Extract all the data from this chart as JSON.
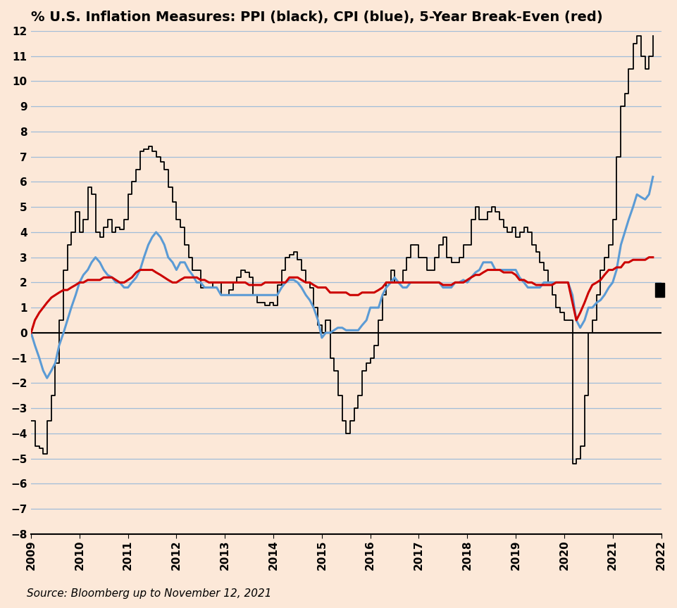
{
  "title": "% U.S. Inflation Measures: PPI (black), CPI (blue), 5-Year Break-Even (red)",
  "background_color": "#fce8d8",
  "source_text": "Source: Bloomberg up to November 12, 2021",
  "ylim": [
    -8,
    12
  ],
  "yticks": [
    -8,
    -7,
    -6,
    -5,
    -4,
    -3,
    -2,
    -1,
    0,
    1,
    2,
    3,
    4,
    5,
    6,
    7,
    8,
    9,
    10,
    11,
    12
  ],
  "grid_color": "#a0bcd8",
  "ppi_color": "#000000",
  "cpi_color": "#5b9bd5",
  "breakeven_color": "#cc0000",
  "ppi_linewidth": 1.3,
  "cpi_linewidth": 2.2,
  "breakeven_linewidth": 2.2,
  "title_fontsize": 14,
  "tick_fontsize": 11,
  "source_fontsize": 11,
  "xlim": [
    2009.0,
    2022.0
  ],
  "xticks": [
    2009,
    2010,
    2011,
    2012,
    2013,
    2014,
    2015,
    2016,
    2017,
    2018,
    2019,
    2020,
    2021,
    2022
  ],
  "ppi_dates": [
    2009.0,
    2009.08,
    2009.17,
    2009.25,
    2009.33,
    2009.42,
    2009.5,
    2009.58,
    2009.67,
    2009.75,
    2009.83,
    2009.92,
    2010.0,
    2010.08,
    2010.17,
    2010.25,
    2010.33,
    2010.42,
    2010.5,
    2010.58,
    2010.67,
    2010.75,
    2010.83,
    2010.92,
    2011.0,
    2011.08,
    2011.17,
    2011.25,
    2011.33,
    2011.42,
    2011.5,
    2011.58,
    2011.67,
    2011.75,
    2011.83,
    2011.92,
    2012.0,
    2012.08,
    2012.17,
    2012.25,
    2012.33,
    2012.42,
    2012.5,
    2012.58,
    2012.67,
    2012.75,
    2012.83,
    2012.92,
    2013.0,
    2013.08,
    2013.17,
    2013.25,
    2013.33,
    2013.42,
    2013.5,
    2013.58,
    2013.67,
    2013.75,
    2013.83,
    2013.92,
    2014.0,
    2014.08,
    2014.17,
    2014.25,
    2014.33,
    2014.42,
    2014.5,
    2014.58,
    2014.67,
    2014.75,
    2014.83,
    2014.92,
    2015.0,
    2015.08,
    2015.17,
    2015.25,
    2015.33,
    2015.42,
    2015.5,
    2015.58,
    2015.67,
    2015.75,
    2015.83,
    2015.92,
    2016.0,
    2016.08,
    2016.17,
    2016.25,
    2016.33,
    2016.42,
    2016.5,
    2016.58,
    2016.67,
    2016.75,
    2016.83,
    2016.92,
    2017.0,
    2017.08,
    2017.17,
    2017.25,
    2017.33,
    2017.42,
    2017.5,
    2017.58,
    2017.67,
    2017.75,
    2017.83,
    2017.92,
    2018.0,
    2018.08,
    2018.17,
    2018.25,
    2018.33,
    2018.42,
    2018.5,
    2018.58,
    2018.67,
    2018.75,
    2018.83,
    2018.92,
    2019.0,
    2019.08,
    2019.17,
    2019.25,
    2019.33,
    2019.42,
    2019.5,
    2019.58,
    2019.67,
    2019.75,
    2019.83,
    2019.92,
    2020.0,
    2020.08,
    2020.17,
    2020.25,
    2020.33,
    2020.42,
    2020.5,
    2020.58,
    2020.67,
    2020.75,
    2020.83,
    2020.92,
    2021.0,
    2021.08,
    2021.17,
    2021.25,
    2021.33,
    2021.42,
    2021.5,
    2021.58,
    2021.67,
    2021.75,
    2021.83
  ],
  "ppi_values": [
    -3.5,
    -4.5,
    -4.6,
    -4.8,
    -3.5,
    -2.5,
    -1.2,
    0.5,
    2.5,
    3.5,
    4.0,
    4.8,
    4.0,
    4.5,
    5.8,
    5.5,
    4.0,
    3.8,
    4.2,
    4.5,
    4.0,
    4.2,
    4.1,
    4.5,
    5.5,
    6.0,
    6.5,
    7.2,
    7.3,
    7.4,
    7.2,
    7.0,
    6.8,
    6.5,
    5.8,
    5.2,
    4.5,
    4.2,
    3.5,
    3.0,
    2.5,
    2.5,
    1.8,
    1.8,
    1.8,
    2.0,
    2.0,
    1.5,
    1.5,
    1.7,
    2.0,
    2.2,
    2.5,
    2.4,
    2.2,
    1.5,
    1.2,
    1.2,
    1.1,
    1.2,
    1.1,
    1.9,
    2.5,
    3.0,
    3.1,
    3.2,
    2.9,
    2.5,
    2.0,
    1.8,
    1.0,
    0.3,
    0.0,
    0.5,
    -1.0,
    -1.5,
    -2.5,
    -3.5,
    -4.0,
    -3.5,
    -3.0,
    -2.5,
    -1.5,
    -1.2,
    -1.0,
    -0.5,
    0.5,
    1.5,
    2.0,
    2.5,
    2.0,
    2.0,
    2.5,
    3.0,
    3.5,
    3.5,
    3.0,
    3.0,
    2.5,
    2.5,
    3.0,
    3.5,
    3.8,
    3.0,
    2.8,
    2.8,
    3.0,
    3.5,
    3.5,
    4.5,
    5.0,
    4.5,
    4.5,
    4.8,
    5.0,
    4.8,
    4.5,
    4.2,
    4.0,
    4.2,
    3.8,
    4.0,
    4.2,
    4.0,
    3.5,
    3.2,
    2.8,
    2.5,
    2.0,
    1.5,
    1.0,
    0.8,
    0.5,
    0.5,
    -5.2,
    -5.0,
    -4.5,
    -2.5,
    0.0,
    0.5,
    1.5,
    2.5,
    3.0,
    3.5,
    4.5,
    7.0,
    9.0,
    9.5,
    10.5,
    11.5,
    11.8,
    11.0,
    10.5,
    11.0,
    11.8
  ],
  "cpi_dates": [
    2009.0,
    2009.08,
    2009.17,
    2009.25,
    2009.33,
    2009.42,
    2009.5,
    2009.58,
    2009.67,
    2009.75,
    2009.83,
    2009.92,
    2010.0,
    2010.08,
    2010.17,
    2010.25,
    2010.33,
    2010.42,
    2010.5,
    2010.58,
    2010.67,
    2010.75,
    2010.83,
    2010.92,
    2011.0,
    2011.08,
    2011.17,
    2011.25,
    2011.33,
    2011.42,
    2011.5,
    2011.58,
    2011.67,
    2011.75,
    2011.83,
    2011.92,
    2012.0,
    2012.08,
    2012.17,
    2012.25,
    2012.33,
    2012.42,
    2012.5,
    2012.58,
    2012.67,
    2012.75,
    2012.83,
    2012.92,
    2013.0,
    2013.08,
    2013.17,
    2013.25,
    2013.33,
    2013.42,
    2013.5,
    2013.58,
    2013.67,
    2013.75,
    2013.83,
    2013.92,
    2014.0,
    2014.08,
    2014.17,
    2014.25,
    2014.33,
    2014.42,
    2014.5,
    2014.58,
    2014.67,
    2014.75,
    2014.83,
    2014.92,
    2015.0,
    2015.08,
    2015.17,
    2015.25,
    2015.33,
    2015.42,
    2015.5,
    2015.58,
    2015.67,
    2015.75,
    2015.83,
    2015.92,
    2016.0,
    2016.08,
    2016.17,
    2016.25,
    2016.33,
    2016.42,
    2016.5,
    2016.58,
    2016.67,
    2016.75,
    2016.83,
    2016.92,
    2017.0,
    2017.08,
    2017.17,
    2017.25,
    2017.33,
    2017.42,
    2017.5,
    2017.58,
    2017.67,
    2017.75,
    2017.83,
    2017.92,
    2018.0,
    2018.08,
    2018.17,
    2018.25,
    2018.33,
    2018.42,
    2018.5,
    2018.58,
    2018.67,
    2018.75,
    2018.83,
    2018.92,
    2019.0,
    2019.08,
    2019.17,
    2019.25,
    2019.33,
    2019.42,
    2019.5,
    2019.58,
    2019.67,
    2019.75,
    2019.83,
    2019.92,
    2020.0,
    2020.08,
    2020.17,
    2020.25,
    2020.33,
    2020.42,
    2020.5,
    2020.58,
    2020.67,
    2020.75,
    2020.83,
    2020.92,
    2021.0,
    2021.08,
    2021.17,
    2021.25,
    2021.33,
    2021.42,
    2021.5,
    2021.58,
    2021.67,
    2021.75,
    2021.83
  ],
  "cpi_values": [
    0.0,
    -0.5,
    -1.0,
    -1.5,
    -1.8,
    -1.5,
    -1.2,
    -0.5,
    0.0,
    0.5,
    1.0,
    1.5,
    2.0,
    2.3,
    2.5,
    2.8,
    3.0,
    2.8,
    2.5,
    2.3,
    2.2,
    2.0,
    2.0,
    1.8,
    1.8,
    2.0,
    2.2,
    2.5,
    3.0,
    3.5,
    3.8,
    4.0,
    3.8,
    3.5,
    3.0,
    2.8,
    2.5,
    2.8,
    2.8,
    2.5,
    2.3,
    2.0,
    2.0,
    1.8,
    1.8,
    1.8,
    1.8,
    1.5,
    1.5,
    1.5,
    1.5,
    1.5,
    1.5,
    1.5,
    1.5,
    1.5,
    1.5,
    1.5,
    1.5,
    1.5,
    1.5,
    1.5,
    1.8,
    2.0,
    2.1,
    2.1,
    2.0,
    1.8,
    1.5,
    1.3,
    1.0,
    0.5,
    -0.2,
    0.0,
    0.0,
    0.1,
    0.2,
    0.2,
    0.1,
    0.1,
    0.1,
    0.1,
    0.3,
    0.5,
    1.0,
    1.0,
    1.0,
    1.5,
    1.8,
    2.0,
    2.2,
    2.0,
    1.8,
    1.8,
    2.0,
    2.0,
    2.0,
    2.0,
    2.0,
    2.0,
    2.0,
    2.0,
    1.8,
    1.8,
    1.8,
    2.0,
    2.0,
    2.1,
    2.0,
    2.2,
    2.4,
    2.5,
    2.8,
    2.8,
    2.8,
    2.5,
    2.5,
    2.5,
    2.5,
    2.5,
    2.5,
    2.2,
    2.0,
    1.8,
    1.8,
    1.8,
    1.8,
    2.0,
    2.0,
    2.0,
    2.0,
    2.0,
    2.0,
    2.0,
    1.5,
    0.5,
    0.2,
    0.5,
    1.0,
    1.0,
    1.2,
    1.3,
    1.5,
    1.8,
    2.0,
    2.5,
    3.5,
    4.0,
    4.5,
    5.0,
    5.5,
    5.4,
    5.3,
    5.5,
    6.2
  ],
  "be_dates": [
    2009.0,
    2009.08,
    2009.17,
    2009.25,
    2009.33,
    2009.42,
    2009.5,
    2009.58,
    2009.67,
    2009.75,
    2009.83,
    2009.92,
    2010.0,
    2010.08,
    2010.17,
    2010.25,
    2010.33,
    2010.42,
    2010.5,
    2010.58,
    2010.67,
    2010.75,
    2010.83,
    2010.92,
    2011.0,
    2011.08,
    2011.17,
    2011.25,
    2011.33,
    2011.42,
    2011.5,
    2011.58,
    2011.67,
    2011.75,
    2011.83,
    2011.92,
    2012.0,
    2012.08,
    2012.17,
    2012.25,
    2012.33,
    2012.42,
    2012.5,
    2012.58,
    2012.67,
    2012.75,
    2012.83,
    2012.92,
    2013.0,
    2013.08,
    2013.17,
    2013.25,
    2013.33,
    2013.42,
    2013.5,
    2013.58,
    2013.67,
    2013.75,
    2013.83,
    2013.92,
    2014.0,
    2014.08,
    2014.17,
    2014.25,
    2014.33,
    2014.42,
    2014.5,
    2014.58,
    2014.67,
    2014.75,
    2014.83,
    2014.92,
    2015.0,
    2015.08,
    2015.17,
    2015.25,
    2015.33,
    2015.42,
    2015.5,
    2015.58,
    2015.67,
    2015.75,
    2015.83,
    2015.92,
    2016.0,
    2016.08,
    2016.17,
    2016.25,
    2016.33,
    2016.42,
    2016.5,
    2016.58,
    2016.67,
    2016.75,
    2016.83,
    2016.92,
    2017.0,
    2017.08,
    2017.17,
    2017.25,
    2017.33,
    2017.42,
    2017.5,
    2017.58,
    2017.67,
    2017.75,
    2017.83,
    2017.92,
    2018.0,
    2018.08,
    2018.17,
    2018.25,
    2018.33,
    2018.42,
    2018.5,
    2018.58,
    2018.67,
    2018.75,
    2018.83,
    2018.92,
    2019.0,
    2019.08,
    2019.17,
    2019.25,
    2019.33,
    2019.42,
    2019.5,
    2019.58,
    2019.67,
    2019.75,
    2019.83,
    2019.92,
    2020.0,
    2020.08,
    2020.17,
    2020.25,
    2020.33,
    2020.42,
    2020.5,
    2020.58,
    2020.67,
    2020.75,
    2020.83,
    2020.92,
    2021.0,
    2021.08,
    2021.17,
    2021.25,
    2021.33,
    2021.42,
    2021.5,
    2021.58,
    2021.67,
    2021.75,
    2021.83
  ],
  "be_values": [
    0.0,
    0.5,
    0.8,
    1.0,
    1.2,
    1.4,
    1.5,
    1.6,
    1.7,
    1.7,
    1.8,
    1.9,
    2.0,
    2.0,
    2.1,
    2.1,
    2.1,
    2.1,
    2.2,
    2.2,
    2.2,
    2.1,
    2.0,
    2.0,
    2.1,
    2.2,
    2.4,
    2.5,
    2.5,
    2.5,
    2.5,
    2.4,
    2.3,
    2.2,
    2.1,
    2.0,
    2.0,
    2.1,
    2.2,
    2.2,
    2.2,
    2.2,
    2.1,
    2.1,
    2.0,
    2.0,
    2.0,
    2.0,
    2.0,
    2.0,
    2.0,
    2.0,
    2.0,
    2.0,
    1.9,
    1.9,
    1.9,
    1.9,
    2.0,
    2.0,
    2.0,
    2.0,
    2.0,
    2.0,
    2.2,
    2.2,
    2.2,
    2.1,
    2.0,
    2.0,
    1.9,
    1.8,
    1.8,
    1.8,
    1.6,
    1.6,
    1.6,
    1.6,
    1.6,
    1.5,
    1.5,
    1.5,
    1.6,
    1.6,
    1.6,
    1.6,
    1.7,
    1.8,
    2.0,
    2.0,
    2.0,
    2.0,
    2.0,
    2.0,
    2.0,
    2.0,
    2.0,
    2.0,
    2.0,
    2.0,
    2.0,
    2.0,
    1.9,
    1.9,
    1.9,
    2.0,
    2.0,
    2.0,
    2.1,
    2.2,
    2.3,
    2.3,
    2.4,
    2.5,
    2.5,
    2.5,
    2.5,
    2.4,
    2.4,
    2.4,
    2.3,
    2.1,
    2.1,
    2.0,
    2.0,
    1.9,
    1.9,
    1.9,
    1.9,
    1.9,
    2.0,
    2.0,
    2.0,
    2.0,
    1.2,
    0.5,
    0.8,
    1.2,
    1.6,
    1.9,
    2.0,
    2.1,
    2.3,
    2.5,
    2.5,
    2.6,
    2.6,
    2.8,
    2.8,
    2.9,
    2.9,
    2.9,
    2.9,
    3.0,
    3.0
  ]
}
